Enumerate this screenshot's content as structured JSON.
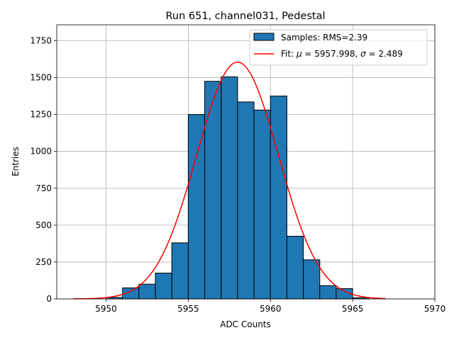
{
  "chart_data": {
    "type": "bar",
    "title": "Run 651, channel031, Pedestal",
    "xlabel": "ADC Counts",
    "ylabel": "Entries",
    "xlim": [
      5947,
      5970
    ],
    "ylim": [
      0,
      1858
    ],
    "x_ticks": [
      5950,
      5955,
      5960,
      5965,
      5970
    ],
    "y_ticks": [
      0,
      250,
      500,
      750,
      1000,
      1250,
      1500,
      1750
    ],
    "grid": true,
    "legend_position": "top-right",
    "histogram": {
      "name": "Samples: RMS=2.39",
      "color": "#1f77b4",
      "edgecolor": "#000000",
      "bin_edges": [
        5950,
        5951,
        5952,
        5953,
        5954,
        5955,
        5956,
        5957,
        5958,
        5959,
        5960,
        5961,
        5962,
        5963,
        5964,
        5965,
        5966
      ],
      "counts": [
        10,
        75,
        100,
        175,
        380,
        1250,
        1475,
        1505,
        1335,
        1280,
        1375,
        425,
        265,
        90,
        70,
        8
      ]
    },
    "fit": {
      "name": "Fit: μ = 5957.998, σ = 2.489",
      "name_parts": {
        "prefix": "Fit: ",
        "mu": "μ",
        "mu_value": " = 5957.998, ",
        "sigma": "σ",
        "sigma_value": " = 2.489"
      },
      "color": "#ff0000",
      "mu": 5957.998,
      "sigma": 2.489,
      "amplitude": 1605,
      "x_range": [
        5948,
        5967
      ]
    }
  }
}
